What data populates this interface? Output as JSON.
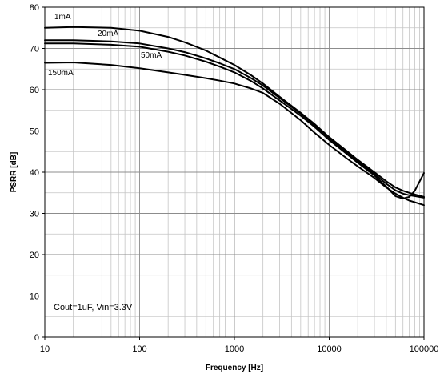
{
  "chart_data": {
    "type": "line",
    "title": "",
    "xlabel": "Frequency [Hz]",
    "ylabel": "PSRR [dB]",
    "xscale": "log",
    "xlim": [
      10,
      100000
    ],
    "ylim": [
      0,
      80
    ],
    "grid": true,
    "x_ticks": [
      10,
      100,
      1000,
      10000,
      100000
    ],
    "x_tick_labels": [
      "10",
      "100",
      "1000",
      "10000",
      "100000"
    ],
    "y_ticks": [
      0,
      10,
      20,
      30,
      40,
      50,
      60,
      70,
      80
    ],
    "y_tick_labels": [
      "0",
      "10",
      "20",
      "30",
      "40",
      "50",
      "60",
      "70",
      "80"
    ],
    "annotation": "Cout=1uF, Vin=3.3V",
    "series": [
      {
        "name": "1mA",
        "x": [
          10,
          20,
          50,
          100,
          200,
          300,
          500,
          700,
          1000,
          1500,
          2000,
          3000,
          5000,
          7000,
          10000,
          15000,
          20000,
          30000,
          40000,
          50000,
          60000,
          70000,
          80000,
          100000
        ],
        "y": [
          75,
          75.2,
          75,
          74.3,
          72.8,
          71.5,
          69.5,
          67.8,
          66,
          63.5,
          61.5,
          58.3,
          54.4,
          51.7,
          48.5,
          45.3,
          43,
          40,
          37.8,
          36.3,
          35.5,
          35,
          34.6,
          34
        ]
      },
      {
        "name": "20mA",
        "x": [
          10,
          20,
          50,
          100,
          200,
          300,
          500,
          700,
          1000,
          1500,
          2000,
          3000,
          5000,
          7000,
          10000,
          15000,
          20000,
          30000,
          40000,
          50000,
          60000,
          70000,
          80000,
          100000
        ],
        "y": [
          72,
          72,
          71.7,
          71.2,
          70,
          69.1,
          67.6,
          66.4,
          65,
          62.8,
          61,
          58,
          54.2,
          51.4,
          48.3,
          45,
          42.7,
          39.6,
          37.2,
          35.6,
          34.8,
          34.4,
          34.2,
          33.8
        ]
      },
      {
        "name": "50mA",
        "x": [
          10,
          20,
          50,
          100,
          200,
          300,
          500,
          700,
          1000,
          1500,
          2000,
          3000,
          5000,
          7000,
          10000,
          15000,
          20000,
          30000,
          40000,
          50000,
          60000,
          70000,
          80000,
          100000
        ],
        "y": [
          71.2,
          71.2,
          70.9,
          70.4,
          69.2,
          68.3,
          66.8,
          65.6,
          64.2,
          62.1,
          60.3,
          57.4,
          53.7,
          51,
          47.8,
          44.6,
          42.3,
          39.2,
          36.5,
          34.2,
          33.6,
          34,
          35.5,
          39.8
        ]
      },
      {
        "name": "150mA",
        "x": [
          10,
          20,
          50,
          100,
          200,
          300,
          500,
          700,
          1000,
          1500,
          2000,
          3000,
          5000,
          7000,
          10000,
          15000,
          20000,
          30000,
          40000,
          50000,
          60000,
          70000,
          80000,
          100000
        ],
        "y": [
          66.5,
          66.6,
          66,
          65.2,
          64.2,
          63.6,
          62.8,
          62.2,
          61.5,
          60.3,
          59.2,
          56.6,
          52.6,
          49.6,
          46.6,
          43.5,
          41.4,
          38.6,
          36.3,
          34.8,
          33.8,
          33.1,
          32.7,
          32
        ]
      }
    ]
  }
}
